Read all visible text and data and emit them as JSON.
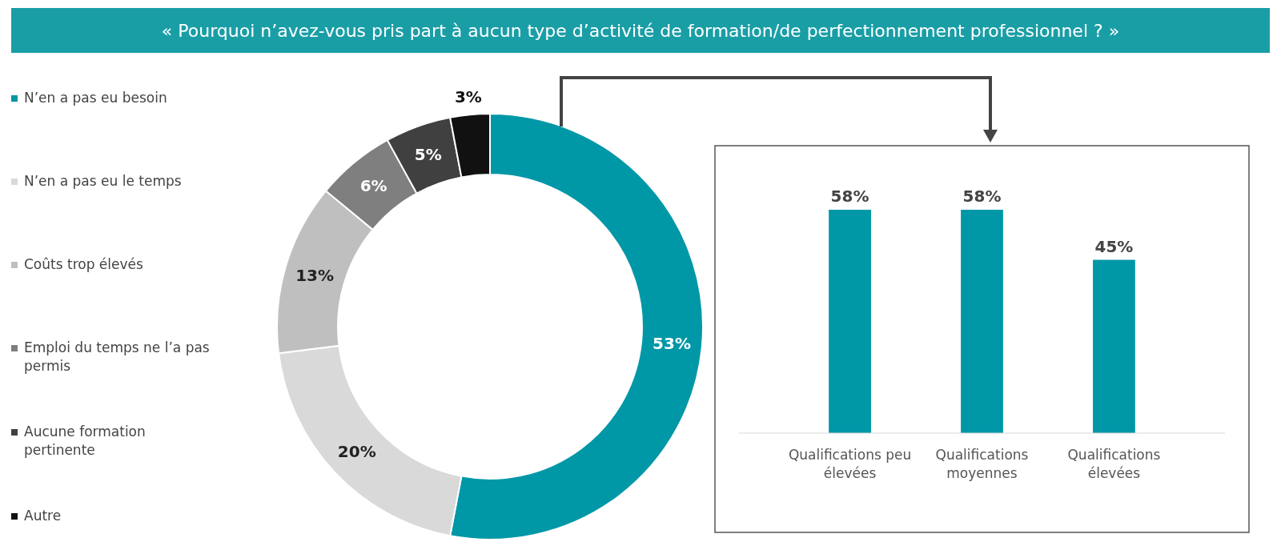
{
  "chart_data": [
    {
      "type": "donut",
      "title": "« Pourquoi n’avez-vous pris part à aucun type d’activité de formation/de perfectionnement professionnel ? »",
      "categories": [
        "N’en a pas eu besoin",
        "N’en a pas eu le temps",
        "Coûts trop élevés",
        "Emploi du temps ne l’a pas permis",
        "Aucune formation pertinente",
        "Autre"
      ],
      "values": [
        53,
        20,
        13,
        6,
        5,
        3
      ],
      "colors": [
        "#0097a7",
        "#d9d9d9",
        "#bfbfbf",
        "#7f7f7f",
        "#404040",
        "#111111"
      ],
      "legend": "left",
      "value_labels": [
        "53%",
        "20%",
        "13%",
        "6%",
        "5%",
        "3%"
      ]
    },
    {
      "type": "bar",
      "categories": [
        "Qualifications peu élevées",
        "Qualifications moyennes",
        "Qualifications élevées"
      ],
      "values": [
        58,
        58,
        45
      ],
      "color": "#0097a7",
      "data_labels": true,
      "value_labels": [
        "58%",
        "58%",
        "45%"
      ]
    }
  ]
}
